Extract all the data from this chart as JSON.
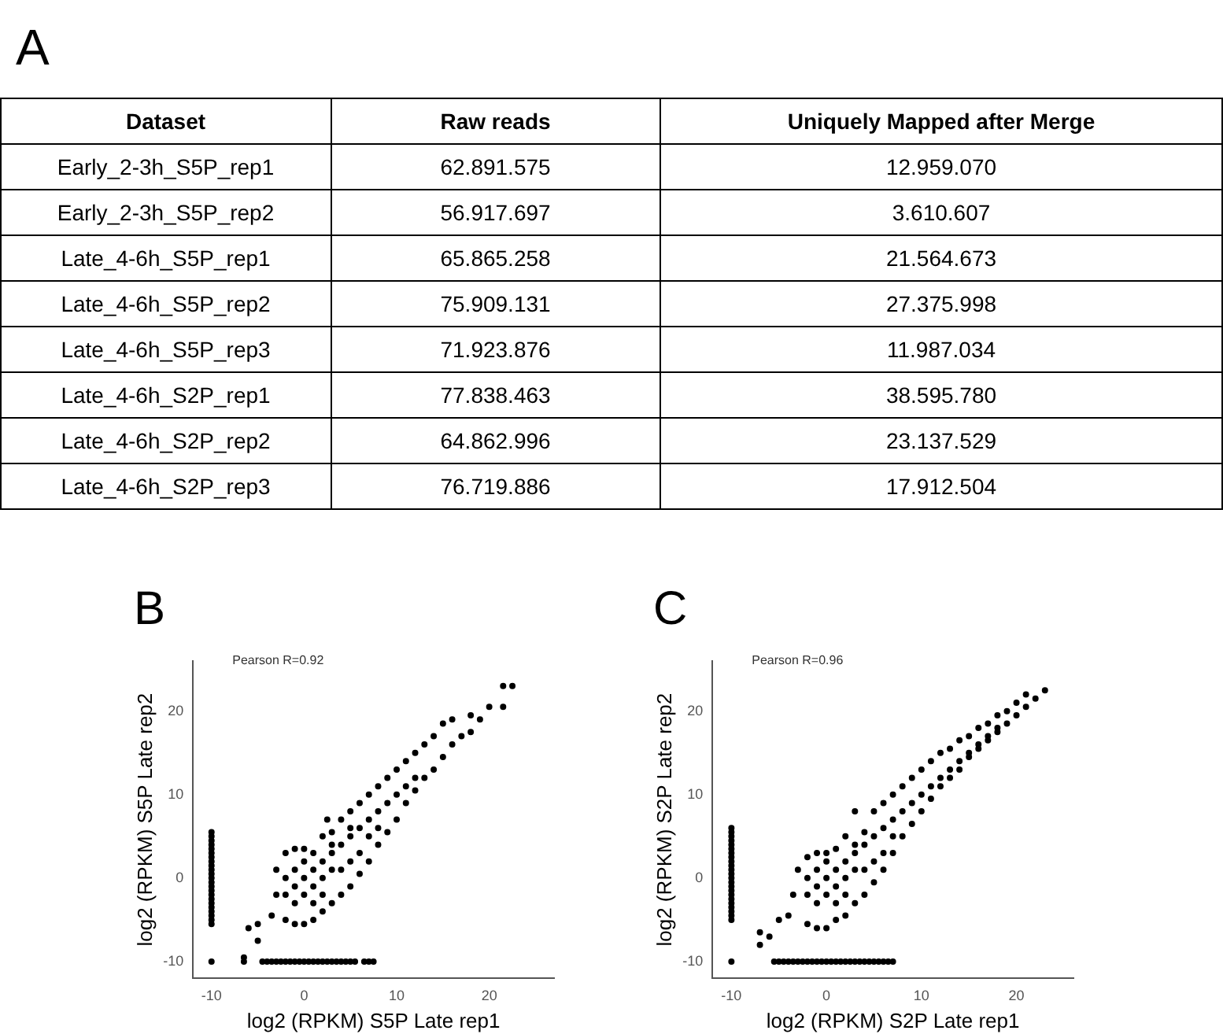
{
  "chart_data": [
    {
      "type": "other",
      "title": "A",
      "categories": [
        "Dataset",
        "Raw reads",
        "Uniquely Mapped after Merge"
      ],
      "annotations": [
        "Early_2-3h_S5P_rep1",
        "62.891.575",
        "12.959.070",
        "Early_2-3h_S5P_rep2",
        "56.917.697",
        "3.610.607",
        "Late_4-6h_S5P_rep1",
        "65.865.258",
        "21.564.673",
        "Late_4-6h_S5P_rep2",
        "75.909.131",
        "27.375.998",
        "Late_4-6h_S5P_rep3",
        "71.923.876",
        "11.987.034",
        "Late_4-6h_S2P_rep1",
        "77.838.463",
        "38.595.780",
        "Late_4-6h_S2P_rep2",
        "64.862.996",
        "23.137.529",
        "Late_4-6h_S2P_rep3",
        "76.719.886",
        "17.912.504"
      ]
    },
    {
      "type": "scatter",
      "title": "B",
      "xlabel": "log2 (RPKM) S5P Late rep1",
      "ylabel": "log2 (RPKM) S5P Late rep2",
      "annotations": [
        "Pearson R=0.92"
      ],
      "xlim": [
        -12,
        27
      ],
      "ylim": [
        -12,
        26
      ],
      "xticks": [
        -10,
        0,
        10,
        20
      ],
      "yticks": [
        -10,
        0,
        10,
        20
      ],
      "grid": false,
      "marker": "circle",
      "color": "#000000",
      "x": [
        -10,
        -10,
        -10,
        -10,
        -10,
        -10,
        -10,
        -10,
        -10,
        -10,
        -10,
        -10,
        -10,
        -10,
        -10,
        -10,
        -10,
        -10,
        -10,
        -10,
        -10,
        -10,
        -10,
        -10,
        -6.5,
        -4.5,
        -4,
        -3.5,
        -3,
        -2.5,
        -2,
        -1.5,
        -1,
        -0.5,
        0,
        0.5,
        1,
        1.5,
        2,
        2.5,
        3,
        3.5,
        4,
        4.5,
        5,
        5.5,
        6.5,
        7,
        7.5,
        -6.5,
        -6,
        -5,
        -5,
        -3.5,
        -3,
        -3,
        -2,
        -1,
        0,
        1,
        2,
        3,
        2.5,
        -2,
        -1,
        0,
        1,
        2,
        3,
        4,
        5,
        6,
        7,
        8,
        9,
        10,
        11,
        12,
        13,
        14,
        15,
        16,
        17,
        18,
        19,
        20,
        21.5,
        21.5,
        22.5,
        4,
        5,
        6,
        7,
        8,
        9,
        10,
        11,
        12,
        13,
        14,
        15,
        16,
        18,
        0,
        1,
        2,
        3,
        -1,
        -2,
        4,
        5,
        6,
        7,
        8,
        9,
        10,
        11,
        12,
        -1,
        1,
        2,
        0,
        3,
        1,
        -1,
        2,
        5,
        6,
        4,
        7,
        8,
        3,
        5,
        -2,
        0
      ],
      "values": [
        -5.5,
        -5,
        -4.5,
        -4,
        -3.5,
        -3,
        -2.5,
        -2,
        -1.5,
        -1,
        -0.5,
        0,
        0.5,
        1,
        1.5,
        2,
        2.5,
        3,
        3.5,
        4,
        4.5,
        5,
        5.5,
        -10,
        -10,
        -10,
        -10,
        -10,
        -10,
        -10,
        -10,
        -10,
        -10,
        -10,
        -10,
        -10,
        -10,
        -10,
        -10,
        -10,
        -10,
        -10,
        -10,
        -10,
        -10,
        -10,
        -10,
        -10,
        -10,
        -9.5,
        -6,
        -5.5,
        -7.5,
        -4.5,
        -2,
        1,
        3,
        3.5,
        3.5,
        3,
        5,
        5.5,
        7,
        -5,
        -5.5,
        -5.5,
        -5,
        -4,
        -3,
        -2,
        -1,
        0.5,
        2,
        4,
        5.5,
        7,
        9,
        10.5,
        12,
        13,
        14.5,
        16,
        17,
        17.5,
        19,
        20.5,
        20.5,
        23,
        23,
        7,
        8,
        9,
        10,
        11,
        12,
        13,
        14,
        15,
        16,
        17,
        18.5,
        19,
        19.5,
        0,
        1,
        2,
        3,
        -1,
        -2,
        4,
        5,
        6,
        7,
        8,
        9,
        10,
        11,
        12,
        1,
        -1,
        0,
        2,
        1,
        -3,
        -3,
        -2,
        2,
        3,
        1,
        5,
        6,
        4,
        6,
        0,
        -2
      ]
    },
    {
      "type": "scatter",
      "title": "C",
      "xlabel": "log2 (RPKM) S2P Late rep1",
      "ylabel": "log2 (RPKM) S2P Late rep2",
      "annotations": [
        "Pearson R=0.96"
      ],
      "xlim": [
        -12,
        26
      ],
      "ylim": [
        -12,
        26
      ],
      "xticks": [
        -10,
        0,
        10,
        20
      ],
      "yticks": [
        -10,
        0,
        10,
        20
      ],
      "grid": false,
      "marker": "circle",
      "color": "#000000",
      "x": [
        -10,
        -10,
        -10,
        -10,
        -10,
        -10,
        -10,
        -10,
        -10,
        -10,
        -10,
        -10,
        -10,
        -10,
        -10,
        -10,
        -10,
        -10,
        -10,
        -10,
        -10,
        -10,
        -10,
        -10,
        -5.5,
        -5,
        -4.5,
        -4,
        -3.5,
        -3,
        -2.5,
        -2,
        -1.5,
        -1,
        -0.5,
        0,
        0.5,
        1,
        1.5,
        2,
        2.5,
        3,
        3.5,
        4,
        4.5,
        5,
        5.5,
        6,
        6.5,
        7,
        -7,
        -7,
        -6,
        -5,
        -4,
        -3.5,
        -3,
        -2,
        -1,
        0,
        1,
        3,
        2,
        4,
        -2,
        -1,
        0,
        1,
        2,
        3,
        4,
        5,
        6,
        7,
        8,
        9,
        10,
        11,
        12,
        13,
        14,
        15,
        16,
        17,
        18,
        19,
        20,
        21,
        22,
        23,
        5,
        6,
        7,
        8,
        9,
        10,
        11,
        12,
        13,
        14,
        15,
        16,
        17,
        18,
        19,
        20,
        21,
        0,
        1,
        2,
        3,
        -1,
        -2,
        4,
        5,
        6,
        7,
        8,
        9,
        10,
        11,
        12,
        13,
        14,
        15,
        16,
        17,
        18,
        -1,
        1,
        2,
        0,
        3,
        1,
        -1,
        2,
        5,
        6,
        4,
        7,
        3,
        -2,
        0
      ],
      "values": [
        -5,
        -4.5,
        -4,
        -3.5,
        -3,
        -2.5,
        -2,
        -1.5,
        -1,
        -0.5,
        0,
        0.5,
        1,
        1.5,
        2,
        2.5,
        3,
        3.5,
        4,
        4.5,
        5,
        5.5,
        6,
        -10,
        -10,
        -10,
        -10,
        -10,
        -10,
        -10,
        -10,
        -10,
        -10,
        -10,
        -10,
        -10,
        -10,
        -10,
        -10,
        -10,
        -10,
        -10,
        -10,
        -10,
        -10,
        -10,
        -10,
        -10,
        -10,
        -10,
        -6.5,
        -8,
        -7,
        -5,
        -4.5,
        -2,
        1,
        2.5,
        3,
        3,
        3.5,
        8,
        5,
        5.5,
        -5.5,
        -6,
        -6,
        -5,
        -4.5,
        -3,
        -2,
        -0.5,
        1,
        3,
        5,
        6.5,
        8,
        9.5,
        11,
        12,
        13,
        14.5,
        15.5,
        16.5,
        17.5,
        18.5,
        19.5,
        20.5,
        21.5,
        22.5,
        8,
        9,
        10,
        11,
        12,
        13,
        14,
        15,
        15.5,
        16.5,
        17,
        18,
        18.5,
        19.5,
        20,
        21,
        22,
        0,
        1,
        2,
        3,
        -1,
        -2,
        4,
        5,
        6,
        7,
        8,
        9,
        10,
        11,
        12,
        13,
        14,
        15,
        16,
        17,
        18,
        1,
        -1,
        0,
        2,
        1,
        -3,
        -3,
        -2,
        2,
        3,
        1,
        5,
        4,
        0,
        -2
      ]
    }
  ]
}
